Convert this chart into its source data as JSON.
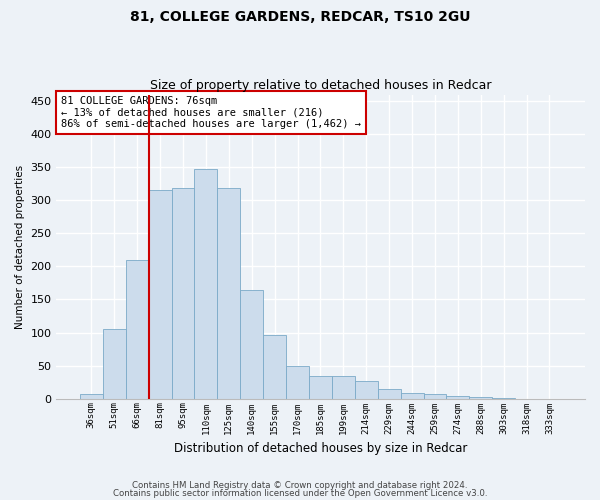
{
  "title1": "81, COLLEGE GARDENS, REDCAR, TS10 2GU",
  "title2": "Size of property relative to detached houses in Redcar",
  "xlabel": "Distribution of detached houses by size in Redcar",
  "ylabel": "Number of detached properties",
  "categories": [
    "36sqm",
    "51sqm",
    "66sqm",
    "81sqm",
    "95sqm",
    "110sqm",
    "125sqm",
    "140sqm",
    "155sqm",
    "170sqm",
    "185sqm",
    "199sqm",
    "214sqm",
    "229sqm",
    "244sqm",
    "259sqm",
    "274sqm",
    "288sqm",
    "303sqm",
    "318sqm",
    "333sqm"
  ],
  "values": [
    7,
    106,
    210,
    315,
    318,
    348,
    318,
    165,
    97,
    50,
    34,
    34,
    27,
    15,
    8,
    7,
    4,
    2,
    1,
    0,
    0
  ],
  "bar_color": "#ccdcec",
  "bar_edge_color": "#7aaac8",
  "vline_index": 3,
  "annotation_text": "81 COLLEGE GARDENS: 76sqm\n← 13% of detached houses are smaller (216)\n86% of semi-detached houses are larger (1,462) →",
  "annotation_box_facecolor": "#ffffff",
  "annotation_box_edgecolor": "#cc0000",
  "vline_color": "#cc0000",
  "footer1": "Contains HM Land Registry data © Crown copyright and database right 2024.",
  "footer2": "Contains public sector information licensed under the Open Government Licence v3.0.",
  "bg_color": "#edf2f7",
  "grid_color": "#ffffff",
  "ylim": [
    0,
    460
  ],
  "yticks": [
    0,
    50,
    100,
    150,
    200,
    250,
    300,
    350,
    400,
    450
  ]
}
